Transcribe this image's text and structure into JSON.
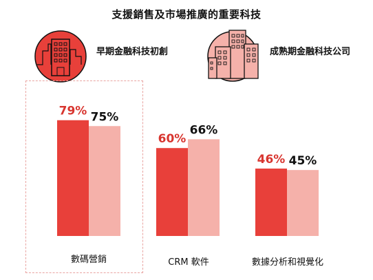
{
  "title": "支援銷售及市場推廣的重要科技",
  "colors": {
    "early": "#e8403a",
    "mature": "#f5b1aa",
    "early_text": "#d8352f",
    "mature_text": "#111111"
  },
  "legend": [
    {
      "label": "早期金融科技初創",
      "icon": "small-building-icon",
      "color": "#e8403a"
    },
    {
      "label": "成熟期金融科技公司",
      "icon": "city-buildings-icon",
      "color": "#f5b1aa"
    }
  ],
  "chart_data": {
    "type": "bar",
    "title": "支援銷售及市場推廣的重要科技",
    "categories": [
      "數碼營銷",
      "CRM 軟件",
      "數據分析和視覺化"
    ],
    "series": [
      {
        "name": "早期金融科技初創",
        "values": [
          79,
          60,
          46
        ],
        "labels": [
          "79%",
          "60%",
          "46%"
        ]
      },
      {
        "name": "成熟期金融科技公司",
        "values": [
          75,
          66,
          45
        ],
        "labels": [
          "75%",
          "66%",
          "45%"
        ]
      }
    ],
    "ylim": [
      0,
      100
    ],
    "grid": false,
    "legend_position": "top",
    "highlighted_category": "數碼營銷"
  }
}
